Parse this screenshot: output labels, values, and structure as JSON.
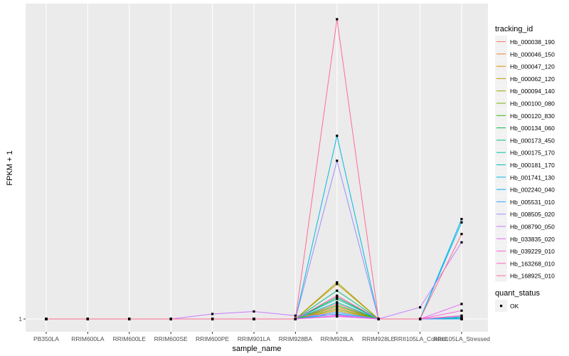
{
  "chart_data": {
    "type": "line",
    "xlabel": "sample_name",
    "ylabel": "FPKM + 1",
    "categories": [
      "PB350LA",
      "RRIM600LA",
      "RRIM600LE",
      "RRIM600SE",
      "RRIM600PE",
      "RRIM901LA",
      "RRIM928BA",
      "RRIM928LA",
      "RRIM928LE",
      "RRII105LA_Control",
      "RRII105LA_Stressed"
    ],
    "y_tick_labels": [
      "1"
    ],
    "y_tick_values": [
      1
    ],
    "ylim": [
      0.92,
      19.6
    ],
    "grid": true,
    "legend_position": "right",
    "color_legend_title": "tracking_id",
    "shape_legend_title": "quant_status",
    "shape_legend_items": [
      "OK"
    ],
    "series": [
      {
        "name": "Hb_000038_190",
        "color": "#F8766D",
        "values": [
          1,
          1,
          1,
          1,
          1,
          1,
          1,
          1.9,
          1,
          1,
          1
        ]
      },
      {
        "name": "Hb_000046_150",
        "color": "#EA8331",
        "values": [
          1,
          1,
          1,
          1,
          1,
          1,
          1,
          1.7,
          1,
          1,
          1
        ]
      },
      {
        "name": "Hb_000047_120",
        "color": "#D89000",
        "values": [
          1,
          1,
          1,
          1,
          1,
          1,
          1,
          1.5,
          1,
          1,
          1
        ]
      },
      {
        "name": "Hb_000062_120",
        "color": "#C09B00",
        "values": [
          1,
          1,
          1,
          1,
          1,
          1,
          1,
          3.1,
          1,
          1,
          1
        ]
      },
      {
        "name": "Hb_000094_140",
        "color": "#A3A500",
        "values": [
          1,
          1,
          1,
          1,
          1,
          1,
          1,
          3.2,
          1,
          1,
          1
        ]
      },
      {
        "name": "Hb_000100_080",
        "color": "#7CAE00",
        "values": [
          1,
          1,
          1,
          1,
          1,
          1,
          1,
          1.6,
          1,
          1,
          1
        ]
      },
      {
        "name": "Hb_000120_830",
        "color": "#39B600",
        "values": [
          1,
          1,
          1,
          1,
          1,
          1,
          1,
          1.8,
          1,
          1,
          1
        ]
      },
      {
        "name": "Hb_000134_060",
        "color": "#00BB4E",
        "values": [
          1,
          1,
          1,
          1,
          1,
          1,
          1,
          2.3,
          1,
          1,
          1
        ]
      },
      {
        "name": "Hb_000173_450",
        "color": "#00BF7D",
        "values": [
          1,
          1,
          1,
          1,
          1,
          1,
          1,
          2.7,
          1,
          1,
          1
        ]
      },
      {
        "name": "Hb_000175_170",
        "color": "#00C1A3",
        "values": [
          1,
          1,
          1,
          1,
          1,
          1,
          1,
          2.2,
          1,
          1,
          1.05
        ]
      },
      {
        "name": "Hb_000181_170",
        "color": "#00BFC4",
        "values": [
          1,
          1,
          1,
          1,
          1,
          1,
          1,
          2.0,
          1,
          1,
          1.1
        ]
      },
      {
        "name": "Hb_001741_130",
        "color": "#00BAE0",
        "values": [
          1,
          1,
          1,
          1,
          1,
          1,
          1,
          12.0,
          1,
          1,
          6.8
        ]
      },
      {
        "name": "Hb_002240_040",
        "color": "#00B0F6",
        "values": [
          1,
          1,
          1,
          1,
          1,
          1,
          1,
          1.3,
          1,
          1,
          7.0
        ]
      },
      {
        "name": "Hb_005531_010",
        "color": "#35A2FF",
        "values": [
          1,
          1,
          1,
          1,
          1,
          1,
          1,
          1.4,
          1,
          1,
          1
        ]
      },
      {
        "name": "Hb_008505_020",
        "color": "#9590FF",
        "values": [
          1,
          1,
          1,
          1,
          1,
          1,
          1,
          10.5,
          1,
          1,
          1.15
        ]
      },
      {
        "name": "Hb_008790_050",
        "color": "#C77CFF",
        "values": [
          1,
          1,
          1,
          1,
          1.3,
          1.45,
          1.2,
          1.25,
          1,
          1.7,
          5.6
        ]
      },
      {
        "name": "Hb_033835_020",
        "color": "#E76BF3",
        "values": [
          1,
          1,
          1,
          1,
          1,
          1,
          1,
          1.15,
          1,
          1,
          1.9
        ]
      },
      {
        "name": "Hb_039229_010",
        "color": "#FA62DB",
        "values": [
          1,
          1,
          1,
          1,
          1,
          1,
          1,
          1.2,
          1,
          1,
          1.5
        ]
      },
      {
        "name": "Hb_163268_010",
        "color": "#FF62BC",
        "values": [
          1,
          1,
          1,
          1,
          1,
          1,
          1,
          2.4,
          1,
          1,
          1.2
        ]
      },
      {
        "name": "Hb_168925_010",
        "color": "#FF6C91",
        "values": [
          1,
          1,
          1,
          1,
          1,
          1,
          1,
          19.0,
          1,
          1,
          6.1
        ]
      }
    ]
  }
}
